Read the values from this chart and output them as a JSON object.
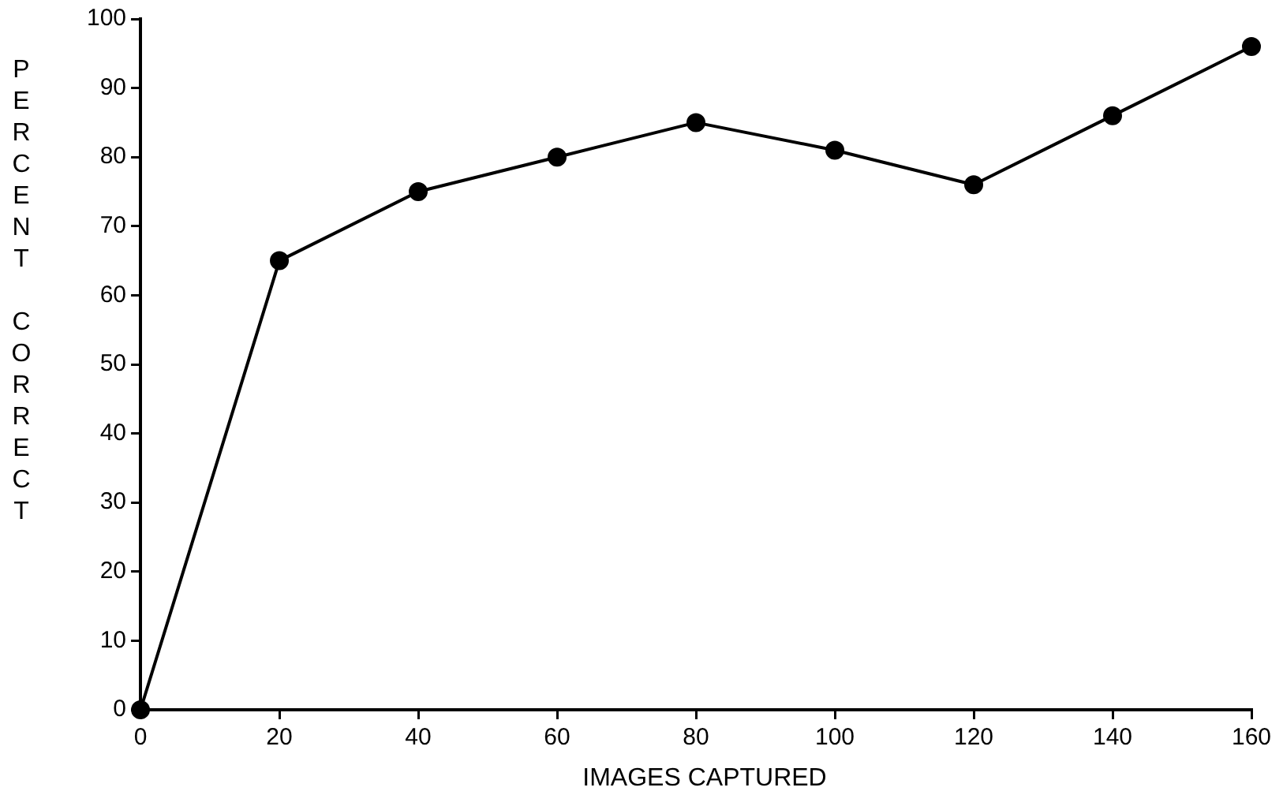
{
  "chart_data": {
    "type": "line",
    "xlabel": "IMAGES CAPTURED",
    "ylabel": "PERCENT CORRECT",
    "x": [
      0,
      20,
      40,
      60,
      80,
      100,
      120,
      140,
      160
    ],
    "series": [
      {
        "color": "#000000",
        "values": [
          0,
          65,
          75,
          80,
          85,
          81,
          76,
          86,
          96
        ]
      }
    ],
    "xlim": [
      0,
      160
    ],
    "xticks": [
      0,
      20,
      40,
      60,
      80,
      100,
      120,
      140,
      160
    ],
    "ylim": [
      0,
      100
    ],
    "yticks": [
      0,
      10,
      20,
      30,
      40,
      50,
      60,
      70,
      80,
      90,
      100
    ],
    "grid": false,
    "legend": false,
    "marker": "circle",
    "line_style": "solid"
  }
}
